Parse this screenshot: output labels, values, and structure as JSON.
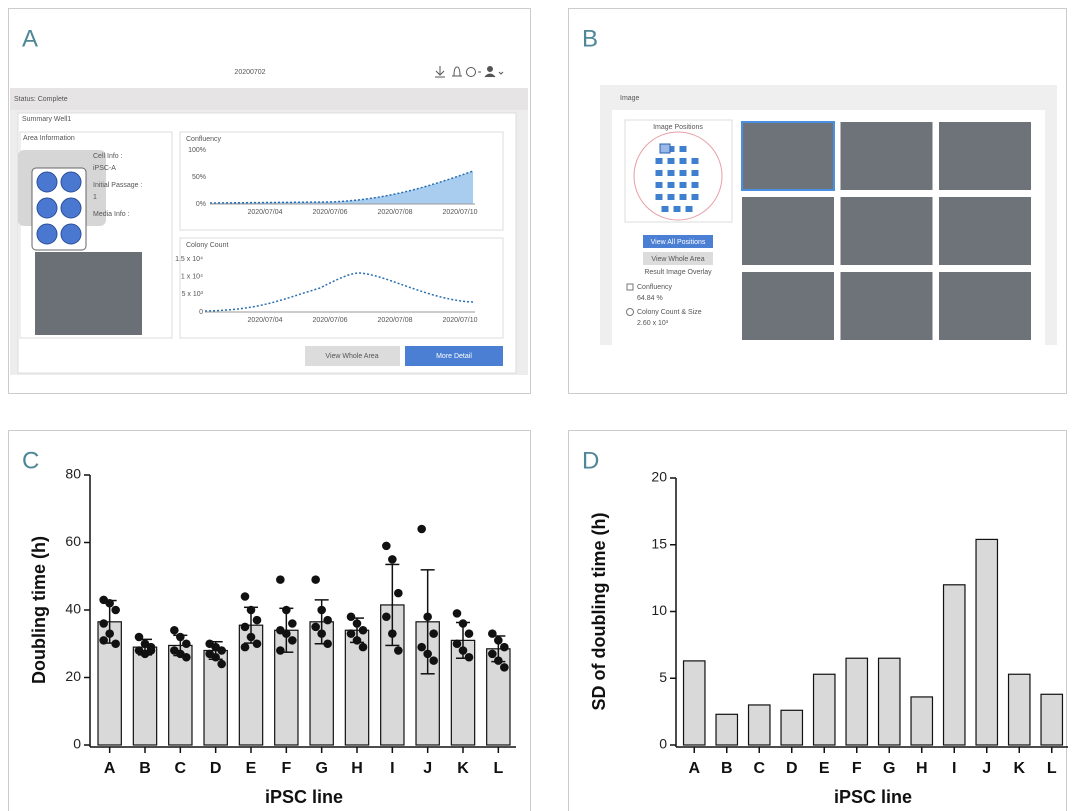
{
  "panels": {
    "A": {
      "label": "A",
      "header": "20200702",
      "status": "Status: Complete",
      "section": "Summary Well1",
      "area_title": "Area Information",
      "cell_info_label": "Cell Info :",
      "cell_info": "iPSC-A",
      "passage_label": "Initial Passage :",
      "passage": "1",
      "media_label": "Media Info :",
      "confluency": {
        "title": "Confluency",
        "yticks": [
          "100%",
          "50%",
          "0%"
        ],
        "xticks": [
          "2020/07/04",
          "2020/07/06",
          "2020/07/08",
          "2020/07/10"
        ]
      },
      "colony": {
        "title": "Colony Count",
        "yticks": [
          "1.5 x 10⁴",
          "1 x 10⁴",
          "5 x 10³",
          "0"
        ],
        "xticks": [
          "2020/07/04",
          "2020/07/06",
          "2020/07/08",
          "2020/07/10"
        ]
      },
      "buttons": [
        "View Whole Area",
        "More Detail"
      ]
    },
    "B": {
      "label": "B",
      "title": "Image",
      "positions_title": "Image Positions",
      "buttons": [
        "View All Positions",
        "View Whole Area"
      ],
      "overlay_title": "Result Image Overlay",
      "overlay": [
        {
          "name": "Confluency",
          "value": "64.84 %"
        },
        {
          "name": "Colony Count & Size",
          "value": "2.60 x 10³"
        }
      ]
    }
  },
  "chart_data": [
    {
      "type": "bar",
      "panel_label": "C",
      "y_label": "Doubling time (h)",
      "x_label": "iPSC line",
      "categories": [
        "A",
        "B",
        "C",
        "D",
        "E",
        "F",
        "G",
        "H",
        "I",
        "J",
        "K",
        "L"
      ],
      "values": [
        36.5,
        29,
        29.5,
        28,
        35.5,
        34,
        36.5,
        34,
        41.5,
        36.5,
        31,
        28.5
      ],
      "errors": [
        6.3,
        2.3,
        3.0,
        2.6,
        5.3,
        6.5,
        6.5,
        3.6,
        12,
        15.4,
        5.3,
        3.8
      ],
      "points": [
        [
          43,
          42,
          40,
          36,
          33,
          30,
          31
        ],
        [
          32,
          30,
          29,
          28,
          27,
          28
        ],
        [
          34,
          32,
          30,
          28,
          27,
          26
        ],
        [
          30,
          29,
          28,
          27,
          26,
          24
        ],
        [
          44,
          40,
          37,
          35,
          32,
          30,
          29
        ],
        [
          49,
          40,
          36,
          34,
          33,
          31,
          28
        ],
        [
          49,
          40,
          37,
          35,
          33,
          30
        ],
        [
          38,
          36,
          34,
          33,
          31,
          29
        ],
        [
          59,
          55,
          45,
          38,
          33,
          28
        ],
        [
          64,
          38,
          33,
          29,
          27,
          25
        ],
        [
          39,
          36,
          33,
          30,
          28,
          26
        ],
        [
          33,
          31,
          29,
          27,
          25,
          23
        ]
      ],
      "color": "#d9d9d9",
      "ylim": [
        0,
        80
      ],
      "yticks": [
        0,
        20,
        40,
        60,
        80
      ]
    },
    {
      "type": "bar",
      "panel_label": "D",
      "y_label": "SD of doubling time (h)",
      "x_label": "iPSC line",
      "categories": [
        "A",
        "B",
        "C",
        "D",
        "E",
        "F",
        "G",
        "H",
        "I",
        "J",
        "K",
        "L"
      ],
      "values": [
        6.3,
        2.3,
        3.0,
        2.6,
        5.3,
        6.5,
        6.5,
        3.6,
        12,
        15.4,
        5.3,
        3.8
      ],
      "color": "#d9d9d9",
      "ylim": [
        0,
        20
      ],
      "yticks": [
        0,
        5,
        10,
        15,
        20
      ]
    }
  ]
}
